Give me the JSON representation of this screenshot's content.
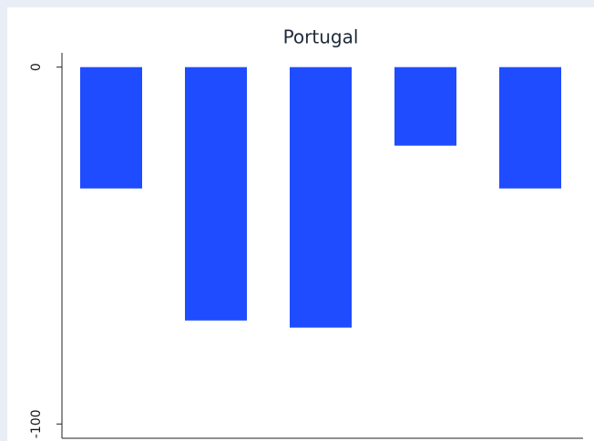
{
  "chart_data": {
    "type": "bar",
    "title": "Portugal",
    "values": [
      -34,
      -71,
      -73,
      -22,
      -34
    ],
    "color": "#1f4cff",
    "ylim": [
      -104,
      4
    ],
    "yticks": [
      -100,
      0
    ]
  }
}
